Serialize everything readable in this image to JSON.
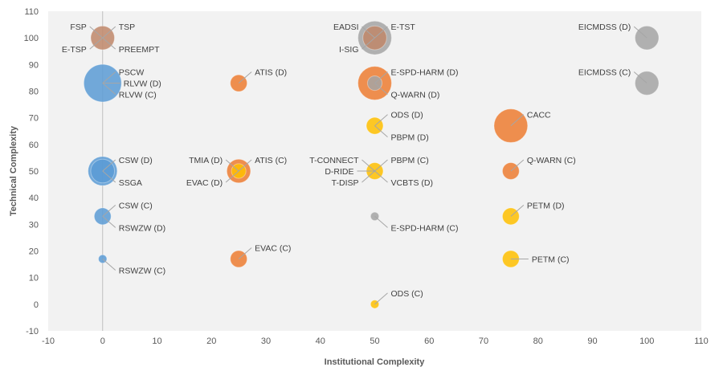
{
  "chart_data": {
    "type": "scatter",
    "title": "",
    "xlabel": "Institutional  Complexity",
    "ylabel": "Technical Complexity",
    "xlim": [
      -10,
      110
    ],
    "ylim": [
      -10,
      110
    ],
    "x_ticks": [
      "-10",
      "0",
      "10",
      "20",
      "30",
      "40",
      "50",
      "60",
      "70",
      "80",
      "90",
      "100",
      "110"
    ],
    "y_ticks": [
      "-10",
      "0",
      "10",
      "20",
      "30",
      "40",
      "50",
      "60",
      "70",
      "80",
      "90",
      "100",
      "110"
    ],
    "grid": "none",
    "legend": "none",
    "colors": {
      "blue": "#5b9bd5",
      "orange": "#ed7d31",
      "gold": "#ffc000",
      "gray": "#a5a5a5",
      "brown": "#c0876a",
      "plot_bg": "#f2f2f2",
      "zero_line": "#bfbfbf"
    },
    "points": [
      {
        "x": 0,
        "y": 100,
        "size": 4,
        "color": "brown"
      },
      {
        "x": 0,
        "y": 83,
        "size": 10,
        "color": "blue"
      },
      {
        "x": 0,
        "y": 50,
        "size": 6,
        "color": "blue"
      },
      {
        "x": 0,
        "y": 50,
        "size": 4,
        "color": "blue"
      },
      {
        "x": 0,
        "y": 33,
        "size": 2,
        "color": "blue"
      },
      {
        "x": 0,
        "y": 17,
        "size": 0.5,
        "color": "blue"
      },
      {
        "x": 25,
        "y": 83,
        "size": 2,
        "color": "orange"
      },
      {
        "x": 25,
        "y": 50,
        "size": 4,
        "color": "orange"
      },
      {
        "x": 25,
        "y": 50,
        "size": 1.5,
        "color": "gold"
      },
      {
        "x": 25,
        "y": 17,
        "size": 2,
        "color": "orange"
      },
      {
        "x": 50,
        "y": 100,
        "size": 8,
        "color": "gray"
      },
      {
        "x": 50,
        "y": 100,
        "size": 4,
        "color": "brown"
      },
      {
        "x": 50,
        "y": 83,
        "size": 8,
        "color": "orange"
      },
      {
        "x": 50,
        "y": 83,
        "size": 1.5,
        "color": "gray"
      },
      {
        "x": 50,
        "y": 67,
        "size": 2,
        "color": "gold"
      },
      {
        "x": 50,
        "y": 50,
        "size": 2,
        "color": "gold"
      },
      {
        "x": 50,
        "y": 33,
        "size": 0.5,
        "color": "gray"
      },
      {
        "x": 50,
        "y": 0,
        "size": 0.5,
        "color": "gold"
      },
      {
        "x": 75,
        "y": 67,
        "size": 8,
        "color": "orange"
      },
      {
        "x": 75,
        "y": 50,
        "size": 2,
        "color": "orange"
      },
      {
        "x": 75,
        "y": 33,
        "size": 2,
        "color": "gold"
      },
      {
        "x": 75,
        "y": 17,
        "size": 2,
        "color": "gold"
      },
      {
        "x": 100,
        "y": 100,
        "size": 4,
        "color": "gray"
      },
      {
        "x": 100,
        "y": 83,
        "size": 4,
        "color": "gray"
      }
    ],
    "annotations": [
      {
        "text": "FSP",
        "x": 0,
        "y": 100,
        "dir": "ul"
      },
      {
        "text": "TSP",
        "x": 0,
        "y": 100,
        "dir": "ur"
      },
      {
        "text": "PREEMPT",
        "x": 0,
        "y": 100,
        "dir": "dr"
      },
      {
        "text": "E-TSP",
        "x": 0,
        "y": 100,
        "dir": "dl"
      },
      {
        "text": "PSCW",
        "x": 0,
        "y": 83,
        "dir": "ur"
      },
      {
        "text": "RLVW (D)",
        "x": 0,
        "y": 83,
        "dir": "r"
      },
      {
        "text": "RLVW (C)",
        "x": 0,
        "y": 83,
        "dir": "dr"
      },
      {
        "text": "CSW (D)",
        "x": 0,
        "y": 50,
        "dir": "ur"
      },
      {
        "text": "SSGA",
        "x": 0,
        "y": 50,
        "dir": "dr"
      },
      {
        "text": "CSW (C)",
        "x": 0,
        "y": 33,
        "dir": "ur"
      },
      {
        "text": "RSWZW (D)",
        "x": 0,
        "y": 33,
        "dir": "dr"
      },
      {
        "text": "RSWZW (C)",
        "x": 0,
        "y": 17,
        "dir": "dr"
      },
      {
        "text": "ATIS (D)",
        "x": 25,
        "y": 83,
        "dir": "ur"
      },
      {
        "text": "TMIA (D)",
        "x": 25,
        "y": 50,
        "dir": "ul"
      },
      {
        "text": "ATIS (C)",
        "x": 25,
        "y": 50,
        "dir": "ur"
      },
      {
        "text": "EVAC (D)",
        "x": 25,
        "y": 50,
        "dir": "dl"
      },
      {
        "text": "EVAC (C)",
        "x": 25,
        "y": 17,
        "dir": "ur"
      },
      {
        "text": "EADSI",
        "x": 50,
        "y": 100,
        "dir": "ul"
      },
      {
        "text": "E-TST",
        "x": 50,
        "y": 100,
        "dir": "ur"
      },
      {
        "text": "I-SIG",
        "x": 50,
        "y": 100,
        "dir": "dl"
      },
      {
        "text": "E-SPD-HARM (D)",
        "x": 50,
        "y": 83,
        "dir": "ur"
      },
      {
        "text": "Q-WARN (D)",
        "x": 50,
        "y": 83,
        "dir": "dr"
      },
      {
        "text": "ODS (D)",
        "x": 50,
        "y": 67,
        "dir": "ur"
      },
      {
        "text": "PBPM (D)",
        "x": 50,
        "y": 67,
        "dir": "dr"
      },
      {
        "text": "T-CONNECT",
        "x": 50,
        "y": 50,
        "dir": "ul"
      },
      {
        "text": "PBPM (C)",
        "x": 50,
        "y": 50,
        "dir": "ur"
      },
      {
        "text": "D-RIDE",
        "x": 50,
        "y": 50,
        "dir": "l"
      },
      {
        "text": "VCBTS (D)",
        "x": 50,
        "y": 50,
        "dir": "dr"
      },
      {
        "text": "T-DISP",
        "x": 50,
        "y": 50,
        "dir": "dl"
      },
      {
        "text": "E-SPD-HARM (C)",
        "x": 50,
        "y": 33,
        "dir": "dr"
      },
      {
        "text": "ODS (C)",
        "x": 50,
        "y": 0,
        "dir": "ur"
      },
      {
        "text": "CACC",
        "x": 75,
        "y": 67,
        "dir": "ur"
      },
      {
        "text": "Q-WARN (C)",
        "x": 75,
        "y": 50,
        "dir": "ur"
      },
      {
        "text": "PETM (D)",
        "x": 75,
        "y": 33,
        "dir": "ur"
      },
      {
        "text": "PETM (C)",
        "x": 75,
        "y": 17,
        "dir": "r"
      },
      {
        "text": "EICMDSS (D)",
        "x": 100,
        "y": 100,
        "dir": "ul"
      },
      {
        "text": "EICMDSS (C)",
        "x": 100,
        "y": 83,
        "dir": "ul"
      }
    ]
  }
}
